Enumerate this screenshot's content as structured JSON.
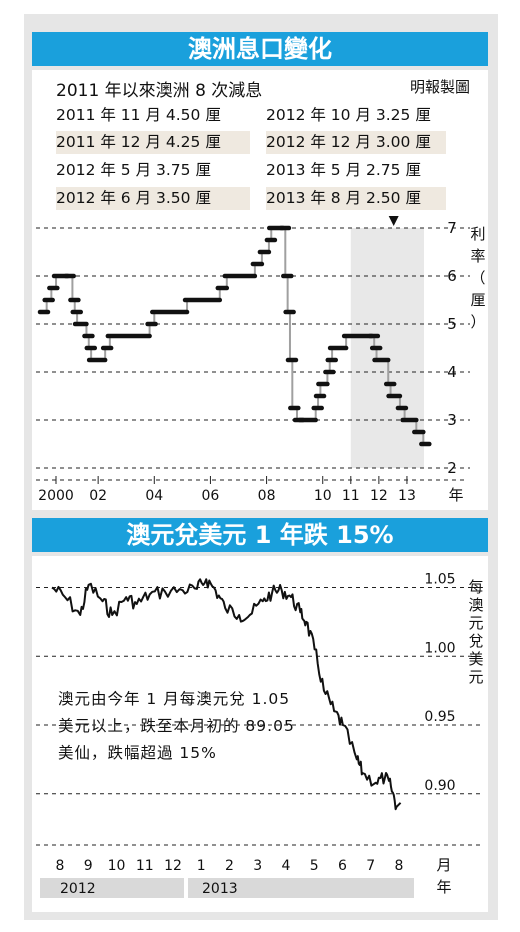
{
  "title1": "澳洲息口變化",
  "subtitle1": "2011 年以來澳洲 8 次減息",
  "credit": "明報製圖",
  "rate_table": [
    [
      "2011 年 11 月 4.50 厘",
      "2012 年 10 月 3.25 厘"
    ],
    [
      "2011 年 12 月 4.25 厘",
      "2012 年 12 月 3.00 厘"
    ],
    [
      "2012 年 5 月 3.75 厘",
      "2013 年 5 月 2.75 厘"
    ],
    [
      "2012 年 6 月 3.50 厘",
      "2013 年 8 月 2.50 厘"
    ]
  ],
  "title2": "澳元兌美元 1 年跌 15%",
  "note": "澳元由今年 1 月每澳元兌 1.05 美元以上，跌至本月初的 89.05 美仙，跌幅超過 15%",
  "chart_data": [
    {
      "type": "line",
      "title": "澳洲息口變化",
      "ylabel": "利率（厘）",
      "xlabel": "年",
      "ylim": [
        2,
        7
      ],
      "x_ticks": [
        "2000",
        "02",
        "04",
        "06",
        "08",
        "10",
        "11",
        "12",
        "13"
      ],
      "y_ticks": [
        "2",
        "3",
        "4",
        "5",
        "6",
        "7"
      ],
      "highlight": "2011–2013 shaded",
      "series": [
        {
          "values": [
            [
              "2000-01",
              5.25
            ],
            [
              "2000-03",
              5.5
            ],
            [
              "2000-05",
              5.75
            ],
            [
              "2000-07",
              6.0
            ],
            [
              "2000-12",
              6.0
            ],
            [
              "2001-02",
              5.5
            ],
            [
              "2001-03",
              5.25
            ],
            [
              "2001-04",
              5.0
            ],
            [
              "2001-08",
              4.75
            ],
            [
              "2001-09",
              4.5
            ],
            [
              "2001-10",
              4.25
            ],
            [
              "2002-04",
              4.5
            ],
            [
              "2002-06",
              4.75
            ],
            [
              "2003-11",
              5.0
            ],
            [
              "2004-01",
              5.25
            ],
            [
              "2005-03",
              5.5
            ],
            [
              "2006-05",
              5.75
            ],
            [
              "2006-08",
              6.0
            ],
            [
              "2007-08",
              6.25
            ],
            [
              "2007-11",
              6.5
            ],
            [
              "2008-02",
              6.75
            ],
            [
              "2008-03",
              7.0
            ],
            [
              "2008-08",
              7.0
            ],
            [
              "2008-09",
              6.0
            ],
            [
              "2008-10",
              5.25
            ],
            [
              "2008-11",
              4.25
            ],
            [
              "2008-12",
              3.25
            ],
            [
              "2009-02",
              3.0
            ],
            [
              "2009-04",
              3.0
            ],
            [
              "2009-10",
              3.25
            ],
            [
              "2009-11",
              3.5
            ],
            [
              "2009-12",
              3.75
            ],
            [
              "2010-03",
              4.0
            ],
            [
              "2010-04",
              4.25
            ],
            [
              "2010-05",
              4.5
            ],
            [
              "2010-11",
              4.75
            ],
            [
              "2011-10",
              4.75
            ],
            [
              "2011-11",
              4.5
            ],
            [
              "2011-12",
              4.25
            ],
            [
              "2012-05",
              3.75
            ],
            [
              "2012-06",
              3.5
            ],
            [
              "2012-10",
              3.25
            ],
            [
              "2012-12",
              3.0
            ],
            [
              "2013-05",
              2.75
            ],
            [
              "2013-08",
              2.5
            ]
          ]
        }
      ]
    },
    {
      "type": "line",
      "title": "澳元兌美元 1 年跌 15%",
      "ylabel": "每澳元兌美元",
      "xlabel": "月 年",
      "ylim": [
        0.87,
        1.07
      ],
      "y_ticks": [
        "0.90",
        "0.95",
        "1.00",
        "1.05"
      ],
      "x_ticks": [
        "8",
        "9",
        "10",
        "11",
        "12",
        "1",
        "2",
        "3",
        "4",
        "5",
        "6",
        "7",
        "8"
      ],
      "year_labels": [
        "2012",
        "2013"
      ],
      "series": [
        {
          "values": [
            [
              "2012-08-01",
              1.05
            ],
            [
              "2012-08-15",
              1.043
            ],
            [
              "2012-09-01",
              1.03
            ],
            [
              "2012-09-10",
              1.052
            ],
            [
              "2012-09-25",
              1.04
            ],
            [
              "2012-10-05",
              1.03
            ],
            [
              "2012-10-20",
              1.043
            ],
            [
              "2012-11-01",
              1.038
            ],
            [
              "2012-11-15",
              1.045
            ],
            [
              "2012-12-01",
              1.047
            ],
            [
              "2012-12-20",
              1.048
            ],
            [
              "2013-01-05",
              1.049
            ],
            [
              "2013-01-15",
              1.056
            ],
            [
              "2013-01-25",
              1.048
            ],
            [
              "2013-02-05",
              1.035
            ],
            [
              "2013-02-20",
              1.03
            ],
            [
              "2013-03-01",
              1.03
            ],
            [
              "2013-03-15",
              1.04
            ],
            [
              "2013-03-25",
              1.046
            ],
            [
              "2013-04-05",
              1.048
            ],
            [
              "2013-04-15",
              1.043
            ],
            [
              "2013-04-25",
              1.032
            ],
            [
              "2013-05-01",
              1.025
            ],
            [
              "2013-05-10",
              1.005
            ],
            [
              "2013-05-20",
              0.975
            ],
            [
              "2013-05-31",
              0.96
            ],
            [
              "2013-06-10",
              0.95
            ],
            [
              "2013-06-25",
              0.925
            ],
            [
              "2013-07-01",
              0.915
            ],
            [
              "2013-07-15",
              0.908
            ],
            [
              "2013-07-25",
              0.912
            ],
            [
              "2013-08-01",
              0.905
            ],
            [
              "2013-08-07",
              0.8905
            ]
          ]
        }
      ]
    }
  ]
}
